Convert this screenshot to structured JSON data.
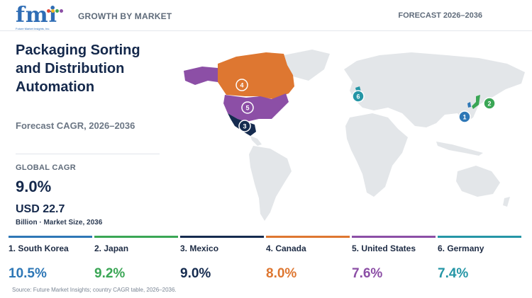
{
  "header": {
    "logo_text": "fmi",
    "logo_tagline": "Future Market Insights, Inc.",
    "section": "GROWTH BY MARKET",
    "forecast": "FORECAST 2026–2036"
  },
  "title": "Packaging Sorting and Distribution Automation",
  "subtitle": "Forecast CAGR, 2026–2036",
  "kpis": {
    "global_label": "GLOBAL CAGR",
    "global_value": "9.0%",
    "market_value": "USD 22.7",
    "market_label": "Billion · Market Size, 2036"
  },
  "chart_data": {
    "type": "table",
    "metric": "CAGR (%)",
    "categories": [
      "South Korea",
      "Japan",
      "Mexico",
      "Canada",
      "United States",
      "Germany"
    ],
    "values": [
      10.5,
      9.2,
      9.0,
      8.0,
      7.6,
      7.4
    ],
    "ranks": [
      1,
      2,
      3,
      4,
      5,
      6
    ],
    "display_values": [
      "10.5%",
      "9.2%",
      "9.0%",
      "8.0%",
      "7.6%",
      "7.4%"
    ],
    "card_labels": [
      "1. South Korea",
      "2. Japan",
      "3. Mexico",
      "4. Canada",
      "5. United States",
      "6. Germany"
    ],
    "colors": [
      "#2e77b6",
      "#3aa655",
      "#152b4f",
      "#de7731",
      "#8c4fa6",
      "#2596a6"
    ],
    "map_marker_labels": [
      "1",
      "2",
      "3",
      "4",
      "5",
      "6"
    ]
  },
  "source": "Source: Future Market Insights; country CAGR table, 2026–2036."
}
